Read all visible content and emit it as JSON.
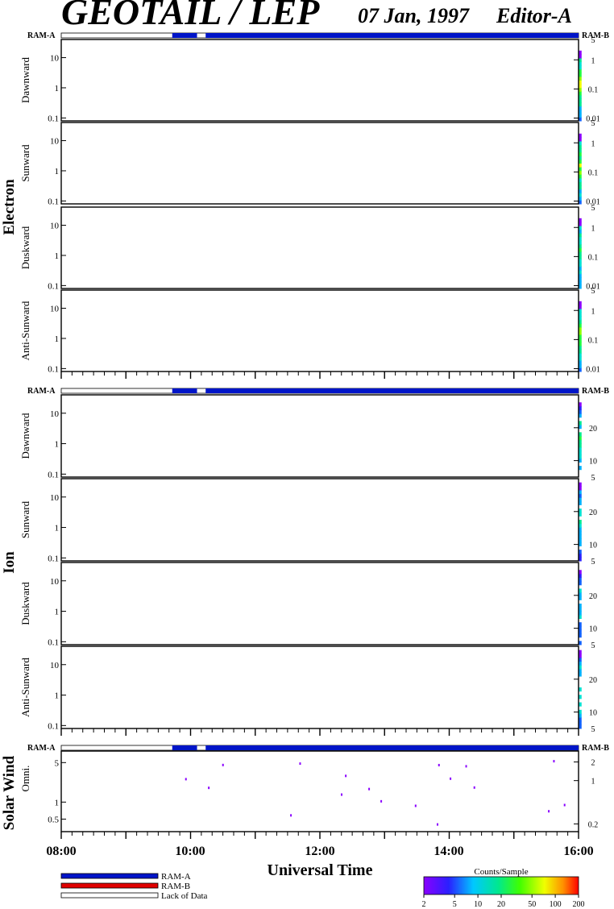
{
  "header": {
    "title": "GEOTAIL / LEP",
    "date": "07 Jan, 1997",
    "editor": "Editor-A"
  },
  "colors": {
    "ram_a": "#0015c8",
    "ram_b": "#e00000",
    "lack": "#ffffff"
  },
  "species": {
    "electron": "Electron",
    "ion": "Ion",
    "solar_wind": "Solar Wind"
  },
  "ram_labels": {
    "a": "RAM-A",
    "b": "RAM-B"
  },
  "xaxis": {
    "label": "Universal Time",
    "ticks": [
      "08:00",
      "10:00",
      "12:00",
      "14:00",
      "16:00"
    ]
  },
  "legend": {
    "ram_a": "RAM-A",
    "ram_b": "RAM-B",
    "lack": "Lack of Data"
  },
  "colorbar": {
    "title": "Counts/Sample",
    "ticks": [
      "2",
      "5",
      "10",
      "20",
      "50",
      "100",
      "200"
    ]
  },
  "chart_data": [
    {
      "type": "heatmap",
      "group": "Electron",
      "panels": [
        "Dawnward",
        "Sunward",
        "Duskward",
        "Anti-Sunward"
      ],
      "xrange": [
        "08:00",
        "16:00"
      ],
      "ylim_left": [
        0.08,
        40
      ],
      "yticks_left": [
        "0.1",
        "1",
        "10"
      ],
      "ylim_right": [
        0.008,
        5
      ],
      "yticks_right": [
        "5",
        "1",
        "0.1",
        "0.01"
      ],
      "data_intervals": [
        [
          "09:43",
          "10:06"
        ],
        [
          "10:14",
          "16:00"
        ]
      ],
      "ram_a_intervals": [
        [
          "09:43",
          "10:06"
        ],
        [
          "10:14",
          "16:00"
        ]
      ]
    },
    {
      "type": "heatmap",
      "group": "Ion",
      "panels": [
        "Dawnward",
        "Sunward",
        "Duskward",
        "Anti-Sunward"
      ],
      "xrange": [
        "08:00",
        "16:00"
      ],
      "ylim_left": [
        0.08,
        40
      ],
      "yticks_left": [
        "0.1",
        "1",
        "10"
      ],
      "ylim_right": [
        5,
        30
      ],
      "yticks_right": [
        "20",
        "10",
        "5"
      ],
      "data_intervals": [
        [
          "09:43",
          "10:06"
        ],
        [
          "10:14",
          "16:00"
        ]
      ],
      "ram_a_intervals": [
        [
          "09:43",
          "10:06"
        ],
        [
          "10:14",
          "16:00"
        ]
      ]
    },
    {
      "type": "heatmap",
      "group": "Solar Wind",
      "panels": [
        "Omni."
      ],
      "xrange": [
        "08:00",
        "16:00"
      ],
      "ylim_left": [
        0.3,
        8
      ],
      "yticks_left": [
        "0.5",
        "1",
        "5"
      ],
      "ylim_right": [
        0.15,
        3
      ],
      "yticks_right": [
        "2",
        "1",
        "0.2"
      ],
      "ram_a_intervals": [
        [
          "09:43",
          "10:06"
        ],
        [
          "10:14",
          "16:00"
        ]
      ]
    }
  ]
}
